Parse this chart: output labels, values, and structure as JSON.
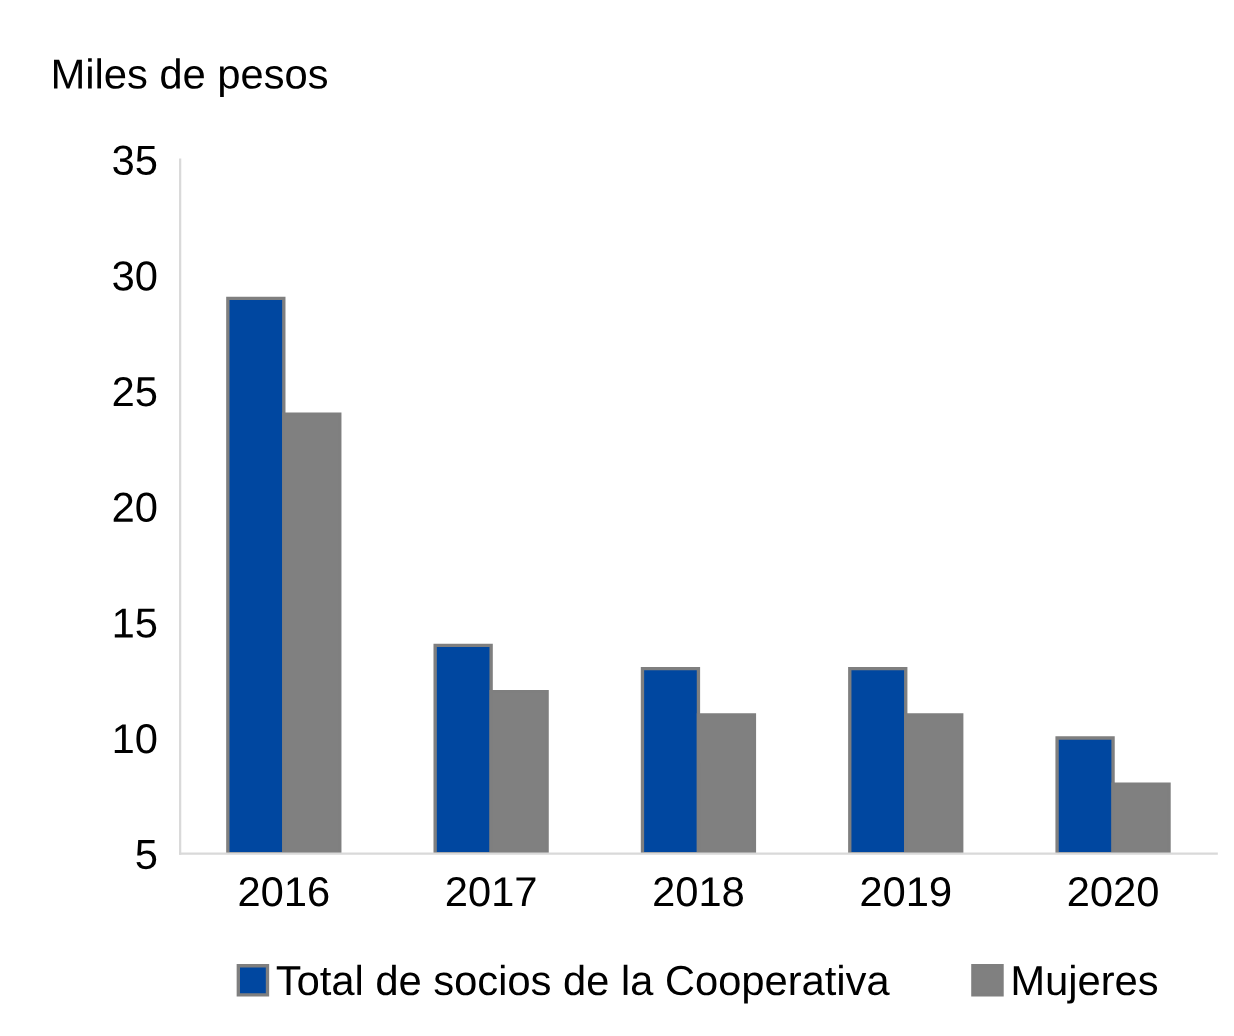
{
  "chart_data": {
    "type": "bar",
    "ylabel": "Miles de pesos",
    "categories": [
      "2016",
      "2017",
      "2018",
      "2019",
      "2020"
    ],
    "series": [
      {
        "name": "Total de socios de la Cooperativa",
        "color": "#0047a0",
        "values": [
          29,
          14,
          13,
          13,
          10
        ]
      },
      {
        "name": "Mujeres",
        "color": "#808080",
        "values": [
          24,
          12,
          11,
          11,
          8
        ]
      }
    ],
    "ylim": [
      5,
      35
    ],
    "yticks": [
      5,
      10,
      15,
      20,
      25,
      30,
      35
    ],
    "grid": false,
    "legend": "bottom"
  }
}
